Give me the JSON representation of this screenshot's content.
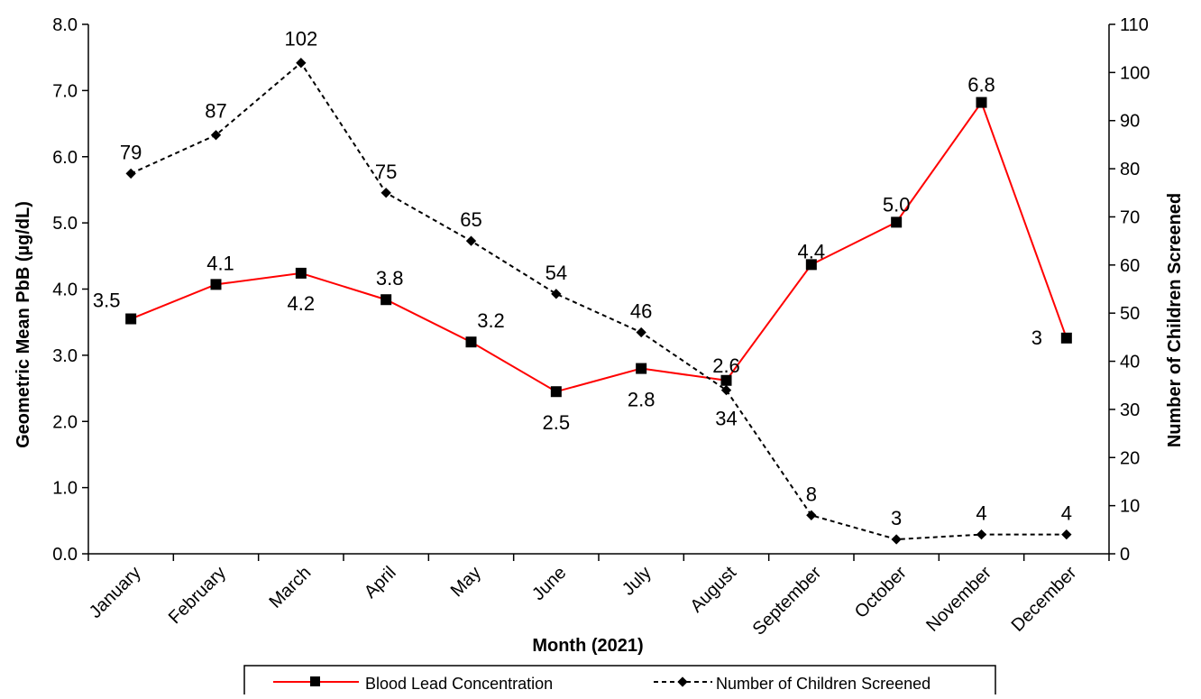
{
  "chart_data": {
    "type": "line",
    "categories": [
      "January",
      "February",
      "March",
      "April",
      "May",
      "June",
      "July",
      "August",
      "September",
      "October",
      "November",
      "December"
    ],
    "series": [
      {
        "name": "Blood Lead Concentration",
        "axis": "left",
        "color": "#ff0000",
        "line_style": "solid",
        "marker": "square",
        "values": [
          3.55,
          4.07,
          4.24,
          3.84,
          3.2,
          2.45,
          2.8,
          2.62,
          4.37,
          5.01,
          6.82,
          3.26
        ],
        "labels": [
          "3.5",
          "4.1",
          "4.2",
          "3.8",
          "3.2",
          "2.5",
          "2.8",
          "2.6",
          "4.4",
          "5.0",
          "6.8",
          "3"
        ]
      },
      {
        "name": "Number of Children Screened",
        "axis": "right",
        "color": "#000000",
        "line_style": "dashed",
        "marker": "diamond",
        "values": [
          79,
          87,
          102,
          75,
          65,
          54,
          46,
          34,
          8,
          3,
          4,
          4
        ],
        "labels": [
          "79",
          "87",
          "102",
          "75",
          "65",
          "54",
          "46",
          "34",
          "8",
          "3",
          "4",
          "4"
        ]
      }
    ],
    "xlabel": "Month (2021)",
    "ylabel": "Geometric Mean PbB (µg/dL)",
    "y2label": "Number of Children Screened",
    "ylim": [
      0,
      8
    ],
    "y2lim": [
      0,
      110
    ],
    "yticks": [
      "0.0",
      "1.0",
      "2.0",
      "3.0",
      "4.0",
      "5.0",
      "6.0",
      "7.0",
      "8.0"
    ],
    "y2ticks": [
      "0",
      "10",
      "20",
      "30",
      "40",
      "50",
      "60",
      "70",
      "80",
      "90",
      "100",
      "110"
    ],
    "grid": false,
    "legend_position": "bottom"
  }
}
